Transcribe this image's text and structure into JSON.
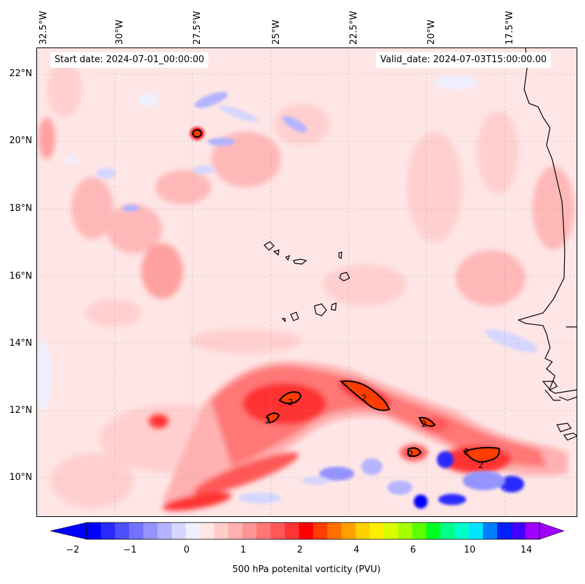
{
  "header": {
    "start_date": "Start date: 2024-07-01_00:00:00",
    "valid_date": "Valid_date: 2024-07-03T15:00:00.00"
  },
  "longitude_labels": [
    "32.5°W",
    "30°W",
    "27.5°W",
    "25°W",
    "22.5°W",
    "20°W",
    "17.5°W"
  ],
  "latitude_labels": [
    "22°N",
    "20°N",
    "18°N",
    "16°N",
    "14°N",
    "12°N",
    "10°N"
  ],
  "contour_labels": [
    "2",
    "2",
    "2",
    "2",
    "2",
    "2",
    "2"
  ],
  "colorbar": {
    "label": "500 hPa potenital vorticity (PVU)",
    "ticks": [
      "−2",
      "−1",
      "0",
      "1",
      "2",
      "4",
      "6",
      "10",
      "14"
    ],
    "colors": [
      "#0000ff",
      "#2a2aff",
      "#4e4eff",
      "#7272ff",
      "#9494ff",
      "#b4b4ff",
      "#d6d6ff",
      "#efefff",
      "#ffe6e6",
      "#ffcccc",
      "#ffb0b0",
      "#ff9494",
      "#ff7777",
      "#ff5757",
      "#ff3333",
      "#ff0000",
      "#ff3d00",
      "#ff7000",
      "#ffa000",
      "#ffd000",
      "#ffee00",
      "#d8ff00",
      "#a6ff00",
      "#5cff00",
      "#00ff22",
      "#00ff88",
      "#00ffcc",
      "#00e4ff",
      "#0080ff",
      "#0020ff",
      "#4000ff",
      "#a000ff"
    ]
  },
  "colors": {
    "background_field": "#ffe6e6",
    "coastline": "#000000",
    "contour_2pvu": "#000000"
  }
}
